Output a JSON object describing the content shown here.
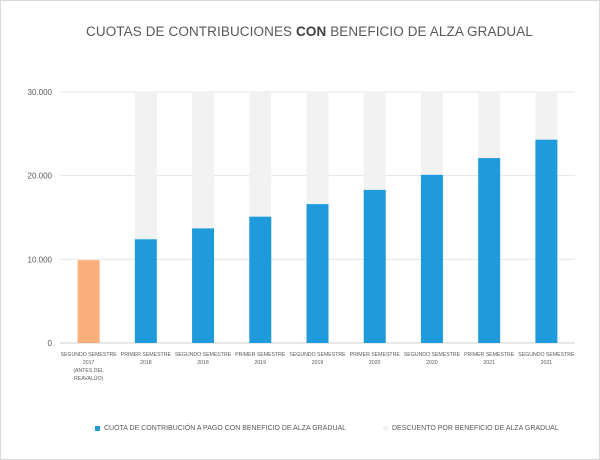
{
  "chart_data": {
    "type": "bar",
    "stacked": true,
    "title_pre": "CUOTAS DE CONTRIBUCIONES ",
    "title_bold": "CON",
    "title_post": " BENEFICIO DE ALZA GRADUAL",
    "xlabel": "",
    "ylabel": "",
    "ylim": [
      0,
      30000
    ],
    "yticks": [
      {
        "value": 0,
        "label": "0"
      },
      {
        "value": 10000,
        "label": "10.000"
      },
      {
        "value": 20000,
        "label": "20.000"
      },
      {
        "value": 30000,
        "label": "30.000"
      }
    ],
    "grid": true,
    "legend_position": "bottom",
    "categories": [
      [
        "SEGUNDO SEMESTRE",
        "2017",
        "(ANTES DEL",
        "REAVALÚO)"
      ],
      [
        "PRIMER SEMESTRE",
        "2018"
      ],
      [
        "SEGUNDO SEMESTRE",
        "2018"
      ],
      [
        "PRIMER SEMESTRE",
        "2019"
      ],
      [
        "SEGUNDO SEMESTRE",
        "2019"
      ],
      [
        "PRIMER SEMESTRE",
        "2020"
      ],
      [
        "SEGUNDO SEMESTRE",
        "2020"
      ],
      [
        "PRIMER SEMESTRE",
        "2021"
      ],
      [
        "SEGUNDO SEMESTRE",
        "2021"
      ]
    ],
    "series": [
      {
        "name": "CUOTA DE CONTRIBUCIÓN A PAGO CON BENEFICIO DE ALZA GRADUAL",
        "color": "#1f9bdc",
        "highlight_color": "#fbb07c",
        "highlight_index": 0,
        "values": [
          9900,
          12400,
          13700,
          15100,
          16600,
          18300,
          20100,
          22100,
          24300
        ]
      },
      {
        "name": "DESCUENTO POR BENEFICIO DE ALZA GRADUAL",
        "color": "#f2f2f2",
        "values": [
          0,
          17600,
          16300,
          14900,
          13400,
          11700,
          9900,
          7900,
          5700
        ]
      }
    ]
  }
}
